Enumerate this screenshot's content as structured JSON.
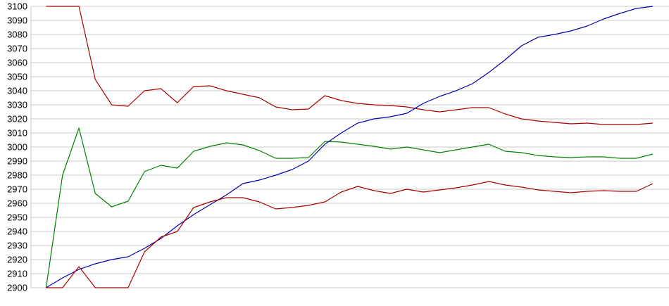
{
  "chart_data": {
    "type": "line",
    "title": "",
    "xlabel": "",
    "ylabel": "",
    "legend": "none",
    "grid": true,
    "background_color": "#ffffff",
    "gridline_color": "#c8c8c8",
    "axis_line_color": "#c8c8c8",
    "label_color": "#000000",
    "y_axis": {
      "min": 2900,
      "max": 3100,
      "step": 10,
      "tick_labels": [
        "3100",
        "3090",
        "3080",
        "3070",
        "3060",
        "3050",
        "3040",
        "3030",
        "3020",
        "3010",
        "3000",
        "2990",
        "2980",
        "2970",
        "2960",
        "2950",
        "2940",
        "2930",
        "2920",
        "2910",
        "2900"
      ]
    },
    "x_axis": {
      "tick_labels": [],
      "point_count": 38
    },
    "series": [
      {
        "name": "upper-red",
        "color": "#aa0000",
        "values": [
          3100,
          3100,
          3100,
          3048,
          3030,
          3029,
          3040,
          3041.5,
          3031.5,
          3043,
          3043.5,
          3040,
          3037.5,
          3035,
          3028.5,
          3026.5,
          3027,
          3036.5,
          3033,
          3031,
          3030,
          3029.5,
          3028.5,
          3026.5,
          3025,
          3026.5,
          3028,
          3028,
          3023.5,
          3020,
          3018.5,
          3017.5,
          3016.5,
          3017,
          3016,
          3016,
          3016,
          3017
        ]
      },
      {
        "name": "green",
        "color": "#008000",
        "values": [
          2900,
          2980,
          3013.5,
          2967,
          2957.5,
          2961.5,
          2982.5,
          2987,
          2985,
          2997,
          3000.5,
          3003,
          3001.5,
          2997.5,
          2992,
          2992,
          2992.5,
          3004,
          3003.5,
          3002,
          3000.5,
          2998.5,
          3000,
          2998,
          2996,
          2998,
          3000,
          3002,
          2997,
          2996,
          2994,
          2993,
          2992.5,
          2993,
          2993,
          2992,
          2992,
          2995
        ]
      },
      {
        "name": "blue",
        "color": "#0000aa",
        "values": [
          2900,
          2907,
          2913,
          2917,
          2920,
          2922,
          2928,
          2935,
          2944,
          2952,
          2959,
          2966,
          2974,
          2976.5,
          2980,
          2984,
          2990,
          3002,
          3010,
          3017,
          3020,
          3021.5,
          3024,
          3031,
          3036,
          3040,
          3045,
          3053,
          3062,
          3072,
          3078,
          3080,
          3082.5,
          3086,
          3091,
          3095,
          3098.5,
          3100
        ]
      },
      {
        "name": "lower-red",
        "color": "#aa0000",
        "values": [
          2900,
          2900,
          2915,
          2900,
          2900,
          2900,
          2925.5,
          2936,
          2940,
          2957,
          2961,
          2964,
          2964,
          2961,
          2956,
          2957,
          2958.5,
          2961,
          2968,
          2972,
          2969,
          2967,
          2970,
          2968,
          2969.5,
          2971,
          2973,
          2975.5,
          2973,
          2971.5,
          2969.5,
          2968.5,
          2967.5,
          2968.5,
          2969,
          2968.5,
          2968.5,
          2974
        ]
      }
    ]
  }
}
